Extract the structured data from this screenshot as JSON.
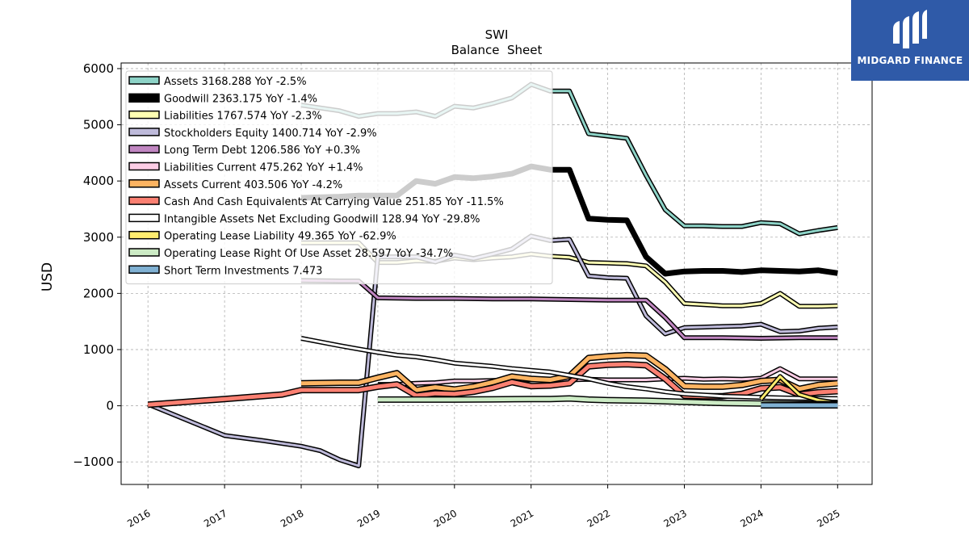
{
  "brand": {
    "name": "MIDGARD FINANCE",
    "color": "#2f5aa8"
  },
  "chart_data": {
    "type": "line",
    "title": "SWI",
    "subtitle": "Balance  Sheet",
    "xlabel": "",
    "ylabel": "USD",
    "xlim": [
      2015.65,
      2025.45
    ],
    "ylim": [
      -1400,
      6100
    ],
    "xticks": [
      2016,
      2017,
      2018,
      2019,
      2020,
      2021,
      2022,
      2023,
      2024,
      2025
    ],
    "xtick_labels": [
      "2016",
      "2017",
      "2018",
      "2019",
      "2020",
      "2021",
      "2022",
      "2023",
      "2024",
      "2025"
    ],
    "yticks": [
      -1000,
      0,
      1000,
      2000,
      3000,
      4000,
      5000,
      6000
    ],
    "ytick_labels": [
      "−1000",
      "0",
      "1000",
      "2000",
      "3000",
      "4000",
      "5000",
      "6000"
    ],
    "grid": true,
    "legend_position": "top-left",
    "series": [
      {
        "name": "Assets  3168.288 YoY -2.5%",
        "color": "#8dd3c7",
        "width": 3,
        "points": [
          [
            2018.0,
            5350
          ],
          [
            2018.5,
            5250
          ],
          [
            2018.75,
            5150
          ],
          [
            2019.0,
            5200
          ],
          [
            2019.25,
            5200
          ],
          [
            2019.5,
            5230
          ],
          [
            2019.75,
            5150
          ],
          [
            2020.0,
            5330
          ],
          [
            2020.25,
            5300
          ],
          [
            2020.5,
            5380
          ],
          [
            2020.75,
            5480
          ],
          [
            2021.0,
            5720
          ],
          [
            2021.25,
            5600
          ],
          [
            2021.5,
            5600
          ],
          [
            2021.75,
            4840
          ],
          [
            2022.0,
            4800
          ],
          [
            2022.25,
            4760
          ],
          [
            2022.5,
            4100
          ],
          [
            2022.75,
            3490
          ],
          [
            2023.0,
            3200
          ],
          [
            2023.25,
            3200
          ],
          [
            2023.5,
            3190
          ],
          [
            2023.75,
            3190
          ],
          [
            2024.0,
            3260
          ],
          [
            2024.25,
            3240
          ],
          [
            2024.5,
            3060
          ],
          [
            2024.75,
            3120
          ],
          [
            2025.0,
            3170
          ]
        ]
      },
      {
        "name": "Goodwill  2363.175 YoY -1.4%",
        "color": "#000000",
        "width": 7,
        "points": [
          [
            2018.0,
            3700
          ],
          [
            2018.5,
            3720
          ],
          [
            2018.75,
            3740
          ],
          [
            2019.0,
            3740
          ],
          [
            2019.25,
            3740
          ],
          [
            2019.5,
            4000
          ],
          [
            2019.75,
            3950
          ],
          [
            2020.0,
            4070
          ],
          [
            2020.25,
            4050
          ],
          [
            2020.5,
            4080
          ],
          [
            2020.75,
            4130
          ],
          [
            2021.0,
            4260
          ],
          [
            2021.25,
            4200
          ],
          [
            2021.5,
            4200
          ],
          [
            2021.75,
            3330
          ],
          [
            2022.0,
            3310
          ],
          [
            2022.25,
            3300
          ],
          [
            2022.5,
            2650
          ],
          [
            2022.75,
            2350
          ],
          [
            2023.0,
            2390
          ],
          [
            2023.25,
            2400
          ],
          [
            2023.5,
            2400
          ],
          [
            2023.75,
            2380
          ],
          [
            2024.0,
            2410
          ],
          [
            2024.25,
            2400
          ],
          [
            2024.5,
            2390
          ],
          [
            2024.75,
            2410
          ],
          [
            2025.0,
            2360
          ]
        ]
      },
      {
        "name": "Liabilities  1767.574 YoY -2.3%",
        "color": "#ffffb3",
        "width": 3,
        "points": [
          [
            2018.0,
            2900
          ],
          [
            2018.5,
            2900
          ],
          [
            2018.75,
            2900
          ],
          [
            2019.0,
            2550
          ],
          [
            2019.25,
            2550
          ],
          [
            2019.5,
            2580
          ],
          [
            2019.75,
            2570
          ],
          [
            2020.0,
            2630
          ],
          [
            2020.25,
            2600
          ],
          [
            2020.5,
            2630
          ],
          [
            2020.75,
            2650
          ],
          [
            2021.0,
            2700
          ],
          [
            2021.25,
            2660
          ],
          [
            2021.5,
            2640
          ],
          [
            2021.75,
            2550
          ],
          [
            2022.0,
            2540
          ],
          [
            2022.25,
            2530
          ],
          [
            2022.5,
            2490
          ],
          [
            2022.75,
            2200
          ],
          [
            2023.0,
            1820
          ],
          [
            2023.25,
            1800
          ],
          [
            2023.5,
            1780
          ],
          [
            2023.75,
            1780
          ],
          [
            2024.0,
            1820
          ],
          [
            2024.25,
            2000
          ],
          [
            2024.5,
            1770
          ],
          [
            2024.75,
            1770
          ],
          [
            2025.0,
            1780
          ]
        ]
      },
      {
        "name": "Stockholders Equity  1400.714 YoY -2.9%",
        "color": "#bebada",
        "width": 3,
        "points": [
          [
            2016.0,
            30
          ],
          [
            2017.0,
            -530
          ],
          [
            2017.5,
            -620
          ],
          [
            2018.0,
            -720
          ],
          [
            2018.25,
            -800
          ],
          [
            2018.5,
            -960
          ],
          [
            2018.75,
            -1070
          ],
          [
            2019.0,
            2650
          ],
          [
            2019.25,
            2650
          ],
          [
            2019.5,
            2650
          ],
          [
            2019.75,
            2560
          ],
          [
            2020.0,
            2680
          ],
          [
            2020.25,
            2620
          ],
          [
            2020.5,
            2700
          ],
          [
            2020.75,
            2790
          ],
          [
            2021.0,
            3020
          ],
          [
            2021.25,
            2940
          ],
          [
            2021.5,
            2960
          ],
          [
            2021.75,
            2310
          ],
          [
            2022.0,
            2280
          ],
          [
            2022.25,
            2270
          ],
          [
            2022.5,
            1600
          ],
          [
            2022.75,
            1280
          ],
          [
            2023.0,
            1390
          ],
          [
            2023.25,
            1400
          ],
          [
            2023.5,
            1410
          ],
          [
            2023.75,
            1420
          ],
          [
            2024.0,
            1450
          ],
          [
            2024.25,
            1320
          ],
          [
            2024.5,
            1330
          ],
          [
            2024.75,
            1380
          ],
          [
            2025.0,
            1400
          ]
        ]
      },
      {
        "name": "Long Term Debt  1206.586 YoY +0.3%",
        "color": "#c086c1",
        "width": 3,
        "points": [
          [
            2018.0,
            2230
          ],
          [
            2018.5,
            2220
          ],
          [
            2018.75,
            2220
          ],
          [
            2019.0,
            1920
          ],
          [
            2019.5,
            1910
          ],
          [
            2020.0,
            1910
          ],
          [
            2020.5,
            1900
          ],
          [
            2021.0,
            1900
          ],
          [
            2021.5,
            1890
          ],
          [
            2022.0,
            1880
          ],
          [
            2022.5,
            1880
          ],
          [
            2022.75,
            1570
          ],
          [
            2023.0,
            1210
          ],
          [
            2023.5,
            1210
          ],
          [
            2024.0,
            1200
          ],
          [
            2024.5,
            1210
          ],
          [
            2025.0,
            1210
          ]
        ]
      },
      {
        "name": "Liabilities Current  475.262 YoY +1.4%",
        "color": "#fccde5",
        "width": 3,
        "points": [
          [
            2019.0,
            380
          ],
          [
            2019.25,
            380
          ],
          [
            2019.5,
            400
          ],
          [
            2019.75,
            410
          ],
          [
            2020.0,
            440
          ],
          [
            2020.25,
            440
          ],
          [
            2020.5,
            450
          ],
          [
            2020.75,
            460
          ],
          [
            2021.0,
            460
          ],
          [
            2021.25,
            460
          ],
          [
            2021.5,
            460
          ],
          [
            2021.75,
            470
          ],
          [
            2022.0,
            460
          ],
          [
            2022.25,
            460
          ],
          [
            2022.5,
            460
          ],
          [
            2022.75,
            480
          ],
          [
            2023.0,
            490
          ],
          [
            2023.25,
            470
          ],
          [
            2023.5,
            480
          ],
          [
            2023.75,
            470
          ],
          [
            2024.0,
            490
          ],
          [
            2024.25,
            660
          ],
          [
            2024.5,
            480
          ],
          [
            2024.75,
            480
          ],
          [
            2025.0,
            480
          ]
        ]
      },
      {
        "name": "Assets Current  403.506 YoY -4.2%",
        "color": "#fdb462",
        "width": 5,
        "points": [
          [
            2018.0,
            400
          ],
          [
            2018.5,
            410
          ],
          [
            2018.75,
            410
          ],
          [
            2019.0,
            500
          ],
          [
            2019.25,
            580
          ],
          [
            2019.5,
            280
          ],
          [
            2019.75,
            330
          ],
          [
            2020.0,
            290
          ],
          [
            2020.25,
            340
          ],
          [
            2020.5,
            420
          ],
          [
            2020.75,
            520
          ],
          [
            2021.0,
            480
          ],
          [
            2021.25,
            460
          ],
          [
            2021.5,
            530
          ],
          [
            2021.75,
            850
          ],
          [
            2022.0,
            880
          ],
          [
            2022.25,
            900
          ],
          [
            2022.5,
            890
          ],
          [
            2022.75,
            650
          ],
          [
            2023.0,
            350
          ],
          [
            2023.25,
            340
          ],
          [
            2023.5,
            340
          ],
          [
            2023.75,
            370
          ],
          [
            2024.0,
            440
          ],
          [
            2024.25,
            460
          ],
          [
            2024.5,
            300
          ],
          [
            2024.75,
            370
          ],
          [
            2025.0,
            400
          ]
        ]
      },
      {
        "name": "Cash And Cash Equivalents At Carrying Value  251.85 YoY -11.5%",
        "color": "#fb8072",
        "width": 5,
        "points": [
          [
            2016.0,
            20
          ],
          [
            2017.0,
            120
          ],
          [
            2017.75,
            200
          ],
          [
            2018.0,
            280
          ],
          [
            2018.5,
            280
          ],
          [
            2018.75,
            280
          ],
          [
            2019.0,
            340
          ],
          [
            2019.25,
            380
          ],
          [
            2019.5,
            180
          ],
          [
            2019.75,
            220
          ],
          [
            2020.0,
            210
          ],
          [
            2020.25,
            250
          ],
          [
            2020.5,
            320
          ],
          [
            2020.75,
            420
          ],
          [
            2021.0,
            350
          ],
          [
            2021.25,
            360
          ],
          [
            2021.5,
            400
          ],
          [
            2021.75,
            700
          ],
          [
            2022.0,
            730
          ],
          [
            2022.25,
            740
          ],
          [
            2022.5,
            720
          ],
          [
            2022.75,
            480
          ],
          [
            2023.0,
            180
          ],
          [
            2023.25,
            170
          ],
          [
            2023.5,
            170
          ],
          [
            2023.75,
            210
          ],
          [
            2024.0,
            310
          ],
          [
            2024.25,
            330
          ],
          [
            2024.5,
            200
          ],
          [
            2024.75,
            240
          ],
          [
            2025.0,
            260
          ]
        ]
      },
      {
        "name": "Intangible Assets Net Excluding Goodwill  128.94 YoY -29.8%",
        "color": "#ffffff",
        "width": 3,
        "points": [
          [
            2018.0,
            1200
          ],
          [
            2018.5,
            1070
          ],
          [
            2018.75,
            1010
          ],
          [
            2019.0,
            950
          ],
          [
            2019.25,
            900
          ],
          [
            2019.5,
            870
          ],
          [
            2019.75,
            820
          ],
          [
            2020.0,
            760
          ],
          [
            2020.25,
            730
          ],
          [
            2020.5,
            700
          ],
          [
            2020.75,
            660
          ],
          [
            2021.0,
            630
          ],
          [
            2021.25,
            600
          ],
          [
            2021.5,
            540
          ],
          [
            2021.75,
            480
          ],
          [
            2022.0,
            400
          ],
          [
            2022.25,
            340
          ],
          [
            2022.5,
            300
          ],
          [
            2022.75,
            250
          ],
          [
            2023.0,
            210
          ],
          [
            2023.25,
            190
          ],
          [
            2023.5,
            170
          ],
          [
            2023.75,
            160
          ],
          [
            2024.0,
            150
          ],
          [
            2024.25,
            140
          ],
          [
            2024.5,
            135
          ],
          [
            2024.75,
            130
          ],
          [
            2025.0,
            129
          ]
        ]
      },
      {
        "name": "Operating Lease Liability  49.365 YoY -62.9%",
        "color": "#ffed6f",
        "width": 3,
        "points": [
          [
            2024.0,
            120
          ],
          [
            2024.25,
            520
          ],
          [
            2024.5,
            200
          ],
          [
            2024.75,
            100
          ],
          [
            2025.0,
            50
          ]
        ]
      },
      {
        "name": "Operating Lease Right Of Use Asset  28.597 YoY -34.7%",
        "color": "#ccebc5",
        "width": 5,
        "points": [
          [
            2019.0,
            110
          ],
          [
            2019.5,
            110
          ],
          [
            2020.0,
            110
          ],
          [
            2020.5,
            115
          ],
          [
            2021.0,
            120
          ],
          [
            2021.25,
            120
          ],
          [
            2021.5,
            130
          ],
          [
            2021.75,
            110
          ],
          [
            2022.0,
            100
          ],
          [
            2022.5,
            90
          ],
          [
            2023.0,
            70
          ],
          [
            2023.5,
            50
          ],
          [
            2024.0,
            40
          ],
          [
            2024.5,
            30
          ],
          [
            2025.0,
            29
          ]
        ]
      },
      {
        "name": "Short Term Investments  7.473",
        "color": "#80b1d3",
        "width": 5,
        "points": [
          [
            2024.0,
            8
          ],
          [
            2025.0,
            8
          ]
        ]
      }
    ]
  }
}
